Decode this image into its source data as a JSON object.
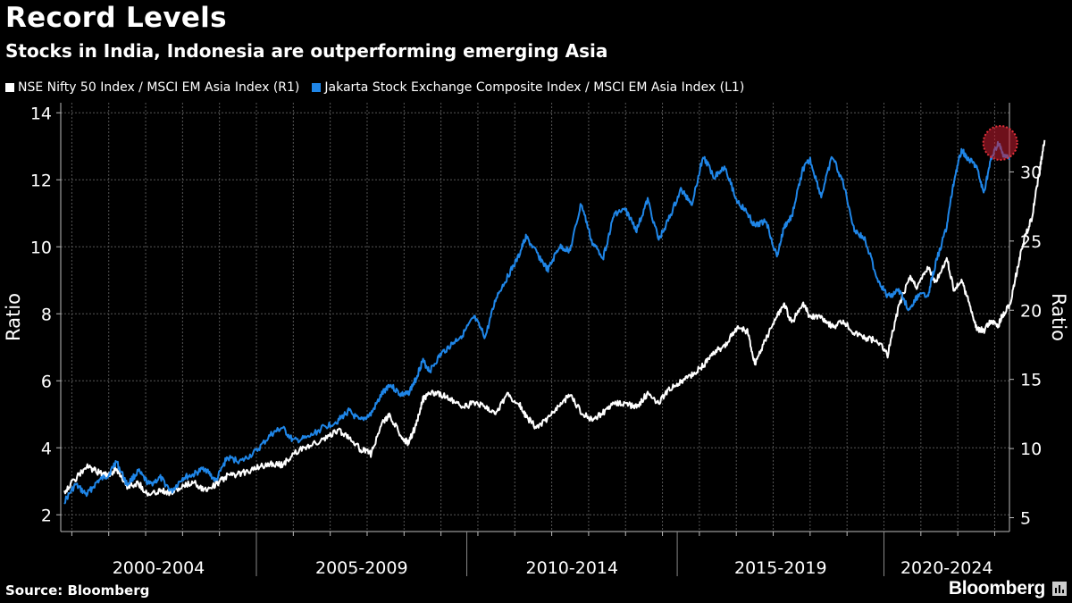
{
  "title": "Record Levels",
  "subtitle": "Stocks in India, Indonesia are outperforming emerging Asia",
  "source": "Source: Bloomberg",
  "brand": "Bloomberg",
  "chart_data": {
    "type": "line",
    "title": "Record Levels",
    "subtitle": "Stocks in India, Indonesia are outperforming emerging Asia",
    "ylabel_left": "Ratio",
    "ylabel_right": "Ratio",
    "left_axis": {
      "range": [
        1.5,
        14.3
      ],
      "ticks": [
        2,
        4,
        6,
        8,
        10,
        12,
        14
      ]
    },
    "right_axis": {
      "range": [
        4.0,
        35.0
      ],
      "ticks": [
        5,
        10,
        15,
        20,
        25,
        30
      ]
    },
    "x_range": [
      1998.7,
      2024.4
    ],
    "x_groups": [
      {
        "label": "2000-2004",
        "start": 1998.7,
        "end": 2004.0
      },
      {
        "label": "2005-2009",
        "start": 2004.0,
        "end": 2009.7
      },
      {
        "label": "2010-2014",
        "start": 2009.7,
        "end": 2015.4
      },
      {
        "label": "2015-2019",
        "start": 2015.4,
        "end": 2021.0
      },
      {
        "label": "2020-2024",
        "start": 2021.0,
        "end": 2024.4
      }
    ],
    "grid": true,
    "highlight": {
      "x": 2024.15,
      "y_left": 13.1
    },
    "series": [
      {
        "name": "NSE Nifty 50 Index / MSCI EM Asia Index (R1)",
        "axis": "right",
        "color": "#ffffff",
        "points": [
          [
            1998.8,
            6.9
          ],
          [
            1999.1,
            7.8
          ],
          [
            1999.4,
            8.7
          ],
          [
            1999.7,
            8.3
          ],
          [
            2000.0,
            8.0
          ],
          [
            2000.2,
            8.6
          ],
          [
            2000.5,
            7.3
          ],
          [
            2000.8,
            7.5
          ],
          [
            2001.1,
            6.6
          ],
          [
            2001.4,
            7.0
          ],
          [
            2001.7,
            6.8
          ],
          [
            2002.0,
            7.2
          ],
          [
            2002.3,
            7.6
          ],
          [
            2002.6,
            7.0
          ],
          [
            2002.9,
            7.4
          ],
          [
            2003.2,
            8.0
          ],
          [
            2003.6,
            8.2
          ],
          [
            2004.0,
            8.6
          ],
          [
            2004.4,
            8.9
          ],
          [
            2004.7,
            8.8
          ],
          [
            2005.0,
            9.6
          ],
          [
            2005.4,
            10.2
          ],
          [
            2005.8,
            10.6
          ],
          [
            2006.2,
            11.3
          ],
          [
            2006.5,
            10.9
          ],
          [
            2006.8,
            10.0
          ],
          [
            2007.1,
            9.6
          ],
          [
            2007.4,
            11.8
          ],
          [
            2007.6,
            12.4
          ],
          [
            2007.9,
            11.0
          ],
          [
            2008.1,
            10.4
          ],
          [
            2008.3,
            11.5
          ],
          [
            2008.5,
            13.5
          ],
          [
            2008.7,
            14.1
          ],
          [
            2009.0,
            13.9
          ],
          [
            2009.3,
            13.5
          ],
          [
            2009.6,
            13.0
          ],
          [
            2009.9,
            13.3
          ],
          [
            2010.2,
            13.0
          ],
          [
            2010.5,
            12.6
          ],
          [
            2010.8,
            13.9
          ],
          [
            2011.1,
            13.3
          ],
          [
            2011.3,
            12.3
          ],
          [
            2011.6,
            11.5
          ],
          [
            2011.9,
            12.2
          ],
          [
            2012.2,
            13.1
          ],
          [
            2012.5,
            13.9
          ],
          [
            2012.8,
            12.6
          ],
          [
            2013.1,
            12.1
          ],
          [
            2013.4,
            12.6
          ],
          [
            2013.7,
            13.3
          ],
          [
            2014.0,
            13.2
          ],
          [
            2014.3,
            13.0
          ],
          [
            2014.6,
            14.0
          ],
          [
            2014.9,
            13.3
          ],
          [
            2015.2,
            14.3
          ],
          [
            2015.5,
            14.9
          ],
          [
            2015.8,
            15.3
          ],
          [
            2016.1,
            16.0
          ],
          [
            2016.4,
            16.9
          ],
          [
            2016.7,
            17.5
          ],
          [
            2017.0,
            18.7
          ],
          [
            2017.3,
            18.5
          ],
          [
            2017.5,
            16.1
          ],
          [
            2017.8,
            17.9
          ],
          [
            2018.1,
            19.6
          ],
          [
            2018.3,
            20.4
          ],
          [
            2018.5,
            19.1
          ],
          [
            2018.8,
            20.5
          ],
          [
            2019.0,
            19.5
          ],
          [
            2019.3,
            19.5
          ],
          [
            2019.6,
            18.8
          ],
          [
            2019.9,
            19.2
          ],
          [
            2020.2,
            18.3
          ],
          [
            2020.5,
            18.0
          ],
          [
            2020.8,
            17.8
          ],
          [
            2021.1,
            16.8
          ],
          [
            2021.4,
            20.3
          ],
          [
            2021.7,
            22.4
          ],
          [
            2021.9,
            21.6
          ],
          [
            2022.2,
            23.1
          ],
          [
            2022.4,
            22.0
          ],
          [
            2022.7,
            23.8
          ],
          [
            2022.9,
            21.4
          ],
          [
            2023.1,
            22.2
          ],
          [
            2023.3,
            20.6
          ],
          [
            2023.5,
            18.7
          ],
          [
            2023.7,
            18.5
          ],
          [
            2023.9,
            19.3
          ],
          [
            2024.1,
            18.9
          ],
          [
            2024.2,
            19.6
          ],
          [
            2024.4,
            20.3
          ],
          [
            2024.6,
            22.8
          ],
          [
            2024.8,
            25.2
          ],
          [
            2025.0,
            26.6
          ],
          [
            2025.2,
            29.8
          ],
          [
            2025.35,
            32.3
          ]
        ]
      },
      {
        "name": "Jakarta Stock Exchange Composite Index / MSCI EM Asia Index (L1)",
        "axis": "left",
        "color": "#1f86e8",
        "points": [
          [
            1998.8,
            2.4
          ],
          [
            1999.1,
            2.9
          ],
          [
            1999.4,
            2.6
          ],
          [
            1999.7,
            3.0
          ],
          [
            2000.0,
            3.2
          ],
          [
            2000.2,
            3.6
          ],
          [
            2000.5,
            2.9
          ],
          [
            2000.8,
            3.3
          ],
          [
            2001.1,
            2.9
          ],
          [
            2001.4,
            3.1
          ],
          [
            2001.7,
            2.7
          ],
          [
            2002.0,
            3.1
          ],
          [
            2002.3,
            3.2
          ],
          [
            2002.6,
            3.4
          ],
          [
            2002.9,
            3.0
          ],
          [
            2003.2,
            3.7
          ],
          [
            2003.6,
            3.6
          ],
          [
            2004.0,
            3.9
          ],
          [
            2004.4,
            4.4
          ],
          [
            2004.7,
            4.6
          ],
          [
            2005.0,
            4.2
          ],
          [
            2005.4,
            4.3
          ],
          [
            2005.8,
            4.6
          ],
          [
            2006.2,
            4.8
          ],
          [
            2006.5,
            5.1
          ],
          [
            2006.8,
            4.8
          ],
          [
            2007.1,
            5.0
          ],
          [
            2007.4,
            5.6
          ],
          [
            2007.6,
            5.9
          ],
          [
            2007.9,
            5.6
          ],
          [
            2008.1,
            5.6
          ],
          [
            2008.3,
            6.0
          ],
          [
            2008.5,
            6.6
          ],
          [
            2008.7,
            6.3
          ],
          [
            2009.0,
            6.8
          ],
          [
            2009.3,
            7.1
          ],
          [
            2009.6,
            7.4
          ],
          [
            2009.9,
            7.9
          ],
          [
            2010.2,
            7.3
          ],
          [
            2010.5,
            8.5
          ],
          [
            2010.8,
            9.1
          ],
          [
            2011.1,
            9.7
          ],
          [
            2011.3,
            10.3
          ],
          [
            2011.6,
            9.8
          ],
          [
            2011.9,
            9.3
          ],
          [
            2012.2,
            10.0
          ],
          [
            2012.5,
            9.9
          ],
          [
            2012.8,
            11.3
          ],
          [
            2013.1,
            10.1
          ],
          [
            2013.4,
            9.7
          ],
          [
            2013.7,
            11.0
          ],
          [
            2014.0,
            11.1
          ],
          [
            2014.3,
            10.5
          ],
          [
            2014.6,
            11.4
          ],
          [
            2014.9,
            10.2
          ],
          [
            2015.2,
            10.9
          ],
          [
            2015.5,
            11.7
          ],
          [
            2015.8,
            11.3
          ],
          [
            2016.1,
            12.7
          ],
          [
            2016.4,
            12.1
          ],
          [
            2016.7,
            12.4
          ],
          [
            2017.0,
            11.4
          ],
          [
            2017.3,
            11.0
          ],
          [
            2017.5,
            10.6
          ],
          [
            2017.8,
            10.8
          ],
          [
            2018.1,
            9.7
          ],
          [
            2018.3,
            10.6
          ],
          [
            2018.5,
            10.9
          ],
          [
            2018.8,
            12.3
          ],
          [
            2019.0,
            12.6
          ],
          [
            2019.3,
            11.5
          ],
          [
            2019.6,
            12.7
          ],
          [
            2019.9,
            11.9
          ],
          [
            2020.2,
            10.5
          ],
          [
            2020.5,
            10.2
          ],
          [
            2020.8,
            9.1
          ],
          [
            2021.1,
            8.5
          ],
          [
            2021.4,
            8.7
          ],
          [
            2021.7,
            8.1
          ],
          [
            2021.9,
            8.5
          ],
          [
            2022.2,
            8.6
          ],
          [
            2022.4,
            9.5
          ],
          [
            2022.7,
            10.6
          ],
          [
            2022.9,
            12.0
          ],
          [
            2023.1,
            12.9
          ],
          [
            2023.3,
            12.6
          ],
          [
            2023.5,
            12.4
          ],
          [
            2023.7,
            11.6
          ],
          [
            2023.9,
            12.6
          ],
          [
            2024.1,
            13.1
          ],
          [
            2024.2,
            12.8
          ],
          [
            2024.4,
            12.6
          ]
        ]
      }
    ]
  }
}
